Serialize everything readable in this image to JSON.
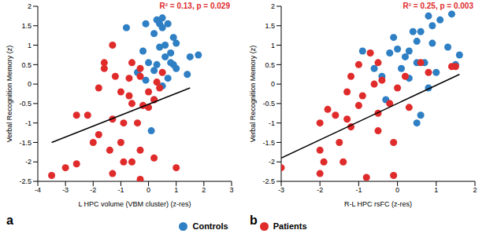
{
  "chart_data": [
    {
      "type": "scatter",
      "title": "a",
      "x_label": "L HPC volume (VBM cluster) (z-res)",
      "y_label": "Verbal Recognition Memory (z)",
      "annotations": [
        "R² = 0.13, p = 0.029"
      ],
      "xlim": [
        -4,
        3
      ],
      "xticks": [
        -4,
        -3,
        -2,
        -1,
        0,
        1,
        2,
        3
      ],
      "ylim": [
        -2.5,
        2
      ],
      "yticks": [
        -2.5,
        -2,
        -1.5,
        -1,
        -0.5,
        0,
        0.5,
        1,
        1.5,
        2
      ],
      "grid": false,
      "legend": "bottom",
      "series": [
        {
          "name": "Controls",
          "color": "#2e7fc4",
          "marker": "circle",
          "x": [
            0.3,
            0.5,
            0.4,
            -0.1,
            0.7,
            0.5,
            -0.8,
            0.2,
            0.9,
            1.0,
            0.6,
            0.4,
            -0.2,
            0.8,
            1.8,
            0.6,
            1.5,
            0.0,
            0.3,
            0.9,
            1.0,
            0.2,
            -0.4,
            1.4,
            0.7,
            -0.1,
            0.5,
            0.2,
            0.1,
            0.8
          ],
          "y": [
            1.65,
            1.7,
            1.55,
            1.55,
            1.55,
            1.45,
            1.45,
            1.3,
            1.2,
            1.05,
            1.0,
            0.95,
            0.85,
            0.8,
            0.75,
            0.7,
            0.7,
            0.55,
            0.5,
            0.5,
            0.4,
            0.35,
            0.3,
            0.25,
            0.15,
            0.1,
            -0.05,
            -0.4,
            -1.2,
            0.55
          ]
        },
        {
          "name": "Patients",
          "color": "#e02b2b",
          "marker": "circle",
          "x": [
            -1.3,
            -1.6,
            -0.6,
            -1.6,
            -0.3,
            -1.2,
            -0.3,
            0.5,
            -0.7,
            0.3,
            -1.8,
            0.4,
            -1.0,
            -0.7,
            0.2,
            -0.6,
            -0.2,
            0.0,
            -2.6,
            -1.3,
            -0.9,
            -0.4,
            -1.8,
            -2.0,
            -1.0,
            -1.4,
            -0.3,
            -0.9,
            -0.6,
            0.2,
            -2.6,
            1.0,
            -3.0,
            -1.3,
            -3.5,
            -0.3,
            -2.2,
            0.0
          ],
          "y": [
            1.0,
            0.55,
            0.55,
            0.4,
            0.4,
            0.2,
            0.2,
            0.3,
            0.15,
            0.05,
            -0.1,
            -0.1,
            -0.2,
            -0.3,
            -0.4,
            -0.5,
            -0.55,
            -0.6,
            -0.8,
            -0.9,
            -1.0,
            -1.0,
            -1.3,
            -1.5,
            -1.5,
            -1.7,
            -1.7,
            -2.0,
            -2.0,
            -1.9,
            -2.05,
            -2.15,
            -2.15,
            -2.3,
            -2.35,
            -2.45,
            -0.8,
            -0.2
          ]
        },
        {
          "type": "line",
          "color": "#000000",
          "x": [
            -3.5,
            1.5
          ],
          "y": [
            -1.5,
            -0.1
          ]
        }
      ]
    },
    {
      "type": "scatter",
      "title": "b",
      "x_label": "R-L HPC rsFC (z-res)",
      "y_label": "Verbal Recognition Memory (z)",
      "annotations": [
        "R² = 0.25, p = 0.003"
      ],
      "xlim": [
        -3,
        2
      ],
      "xticks": [
        -3,
        -2,
        -1,
        0,
        1,
        2
      ],
      "ylim": [
        -2.5,
        2
      ],
      "yticks": [
        -2.5,
        -2,
        -1.5,
        -1,
        -0.5,
        0,
        0.5,
        1,
        1.5,
        2
      ],
      "grid": false,
      "legend": "bottom",
      "series": [
        {
          "name": "Controls",
          "color": "#2e7fc4",
          "marker": "circle",
          "x": [
            1.4,
            0.8,
            1.1,
            0.9,
            0.4,
            0.6,
            -0.1,
            0.5,
            0.9,
            1.3,
            0.0,
            0.3,
            -0.2,
            1.6,
            0.2,
            0.5,
            0.7,
            -0.6,
            0.1,
            1.0,
            -0.4,
            0.3,
            0.8,
            -0.3,
            0.6,
            0.5,
            1.5,
            -0.9
          ],
          "y": [
            1.8,
            1.75,
            1.65,
            1.5,
            1.35,
            1.35,
            1.2,
            1.1,
            1.05,
            0.95,
            0.9,
            0.85,
            0.8,
            0.75,
            0.7,
            0.55,
            0.55,
            0.4,
            0.4,
            0.3,
            0.2,
            0.15,
            -0.1,
            -0.4,
            -0.8,
            -1.0,
            0.5,
            0.85
          ]
        },
        {
          "name": "Patients",
          "color": "#e02b2b",
          "marker": "circle",
          "x": [
            1.5,
            1.4,
            -0.7,
            -1.0,
            -0.5,
            0.6,
            -1.2,
            -0.4,
            0.2,
            -0.6,
            0.0,
            -1.3,
            -0.9,
            -0.2,
            -1.0,
            -0.5,
            0.3,
            -1.6,
            -1.8,
            -2.0,
            -1.2,
            -0.5,
            -0.1,
            -1.5,
            -2.0,
            -1.4,
            -1.9,
            -2.0,
            -0.8,
            -0.1,
            -3.0,
            -1.3,
            0.8
          ],
          "y": [
            0.45,
            0.45,
            0.8,
            0.5,
            0.55,
            0.55,
            0.2,
            0.1,
            0.2,
            0.0,
            -0.1,
            -0.2,
            -0.3,
            -0.5,
            -0.55,
            -0.75,
            -0.6,
            -0.8,
            -0.65,
            -1.0,
            -1.1,
            -1.2,
            -1.5,
            -1.5,
            -1.7,
            -2.0,
            -2.0,
            -2.3,
            -2.4,
            -2.35,
            -2.15,
            -0.9,
            0.3
          ]
        },
        {
          "type": "line",
          "color": "#000000",
          "x": [
            -3.0,
            1.6
          ],
          "y": [
            -1.9,
            0.25
          ]
        }
      ]
    }
  ]
}
